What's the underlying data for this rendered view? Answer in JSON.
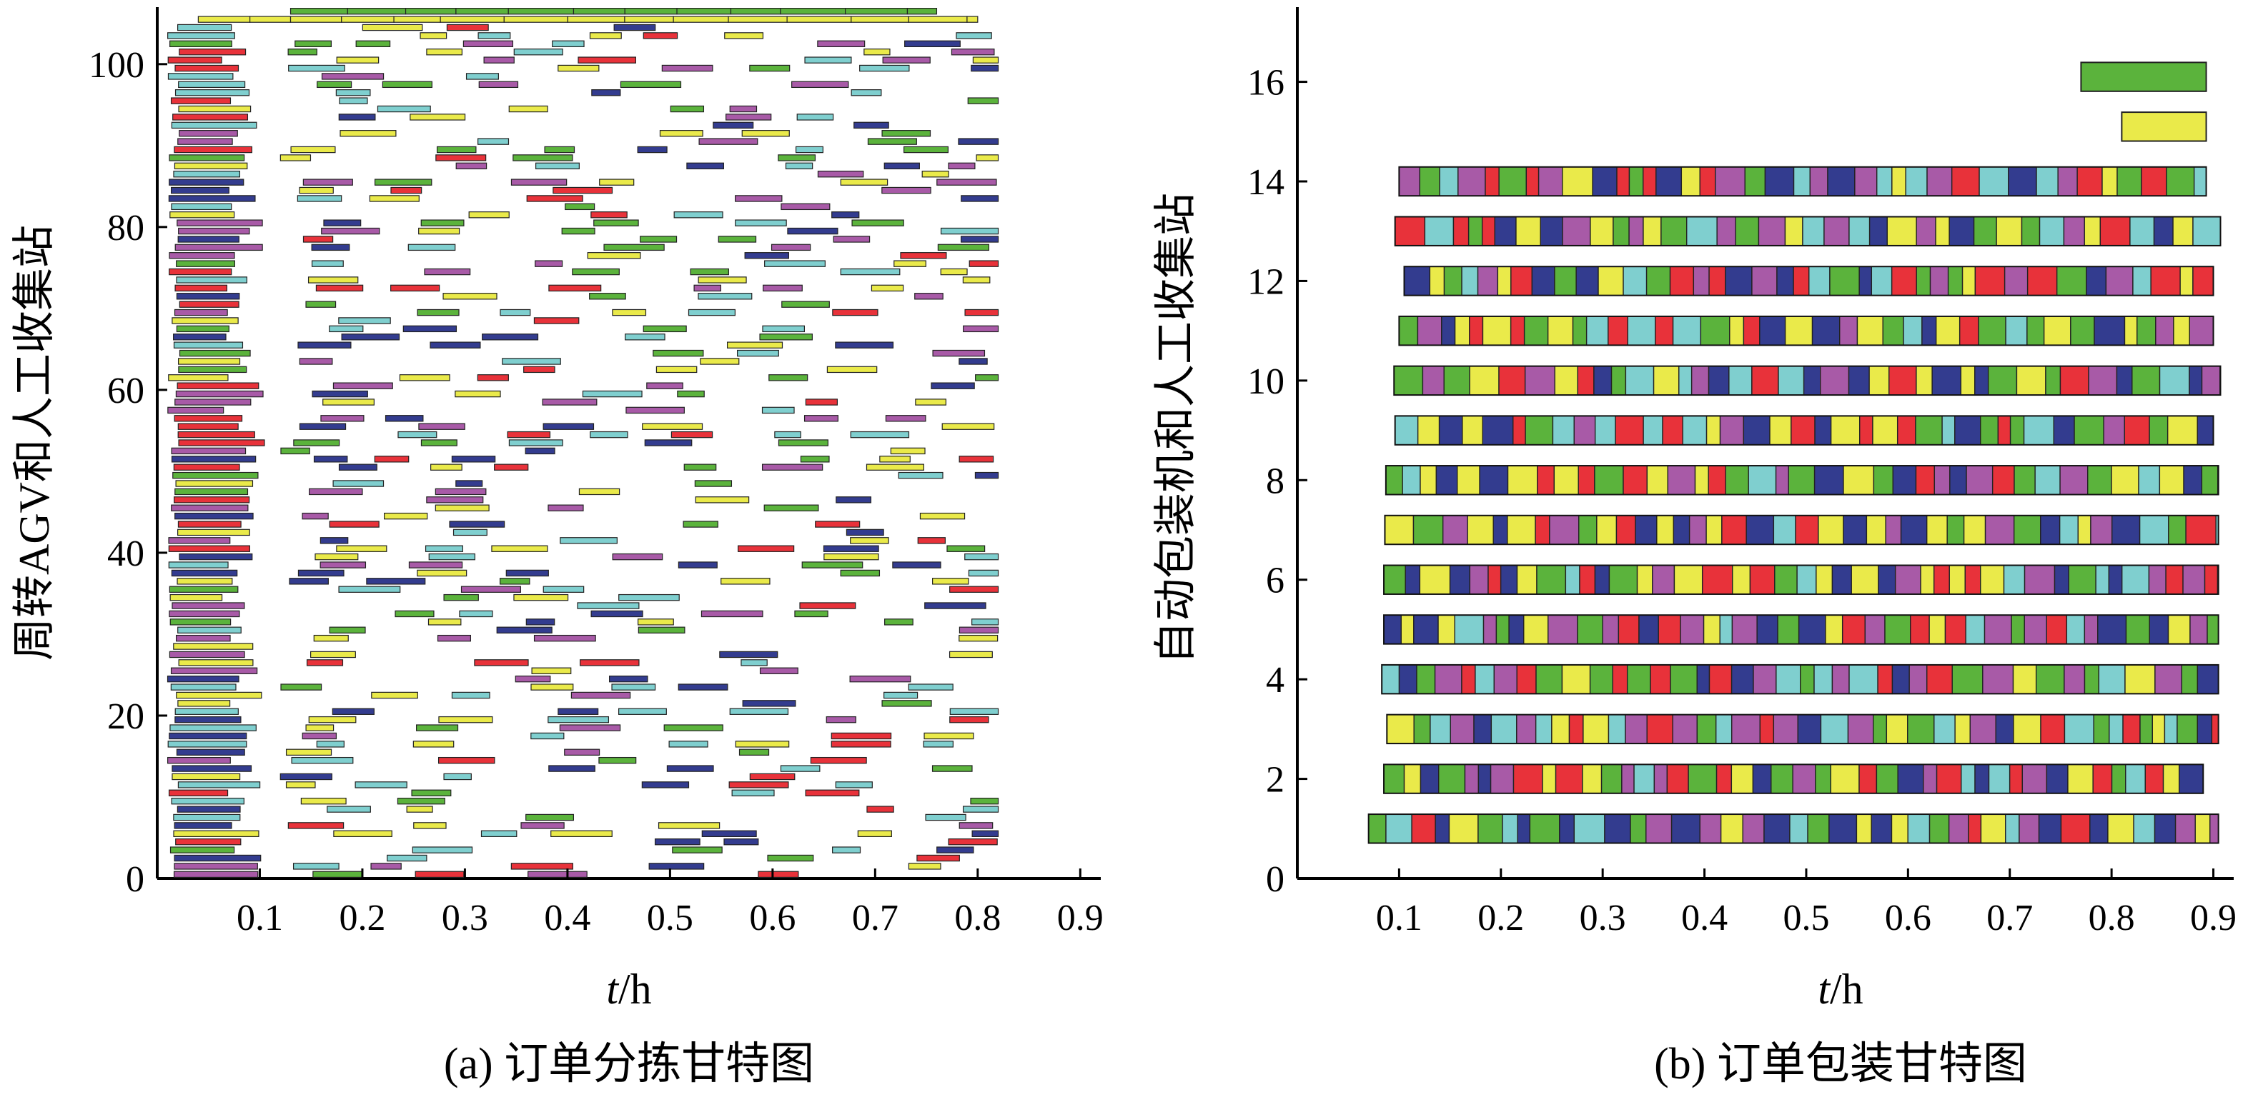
{
  "colors": {
    "red": "#e8323a",
    "green": "#5bb33c",
    "cyan": "#7fcfcf",
    "purple": "#a85aa7",
    "navy": "#333c8f",
    "yellow": "#eaea4a",
    "outline": "#222222"
  },
  "chart_data": [
    {
      "type": "gantt",
      "caption": "(a) 订单分拣甘特图",
      "xlabel_italic": "t",
      "xlabel_unit": "/h",
      "ylabel": "周转AGV和人工收集站",
      "xlim": [
        0,
        0.92
      ],
      "ylim": [
        0,
        107
      ],
      "xticks": [
        "0.1",
        "0.2",
        "0.3",
        "0.4",
        "0.5",
        "0.6",
        "0.7",
        "0.8",
        "0.9"
      ],
      "yticks": [
        "0",
        "20",
        "40",
        "60",
        "80",
        "100"
      ],
      "rows": 107,
      "start": 0.01,
      "end": 0.82,
      "dense_end": 0.12,
      "dense_bar_width": [
        0.05,
        0.085
      ],
      "sparse_bar_width": [
        0.025,
        0.06
      ],
      "sparse_density": 0.58,
      "top_rows": [
        {
          "row": 107,
          "tasks": [
            [
              0.13,
              0.76,
              "green"
            ]
          ]
        },
        {
          "row": 106,
          "tasks": [
            [
              0.04,
              0.13,
              "yellow"
            ],
            [
              0.13,
              0.8,
              "yellow"
            ]
          ]
        }
      ]
    },
    {
      "type": "gantt",
      "caption": "(b) 订单包装甘特图",
      "xlabel_italic": "t",
      "xlabel_unit": "/h",
      "ylabel": "自动包装机和人工收集站",
      "xlim": [
        0,
        0.92
      ],
      "ylim": [
        0,
        17.5
      ],
      "xticks": [
        "0.1",
        "0.2",
        "0.3",
        "0.4",
        "0.5",
        "0.6",
        "0.7",
        "0.8",
        "0.9"
      ],
      "yticks": [
        "0",
        "2",
        "4",
        "6",
        "8",
        "10",
        "12",
        "14",
        "16"
      ],
      "rows": 14,
      "row_extents": [
        [
          0.07,
          0.905
        ],
        [
          0.085,
          0.89
        ],
        [
          0.088,
          0.905
        ],
        [
          0.083,
          0.905
        ],
        [
          0.085,
          0.905
        ],
        [
          0.085,
          0.905
        ],
        [
          0.086,
          0.905
        ],
        [
          0.087,
          0.905
        ],
        [
          0.096,
          0.9
        ],
        [
          0.095,
          0.907
        ],
        [
          0.1,
          0.9
        ],
        [
          0.105,
          0.9
        ],
        [
          0.096,
          0.907
        ],
        [
          0.1,
          0.893
        ]
      ],
      "min_block": 0.012,
      "max_block": 0.03,
      "legend": [
        {
          "color": "green",
          "y": 16.1,
          "x": [
            0.77,
            0.893
          ]
        },
        {
          "color": "yellow",
          "y": 15.1,
          "x": [
            0.81,
            0.893
          ]
        }
      ]
    }
  ]
}
